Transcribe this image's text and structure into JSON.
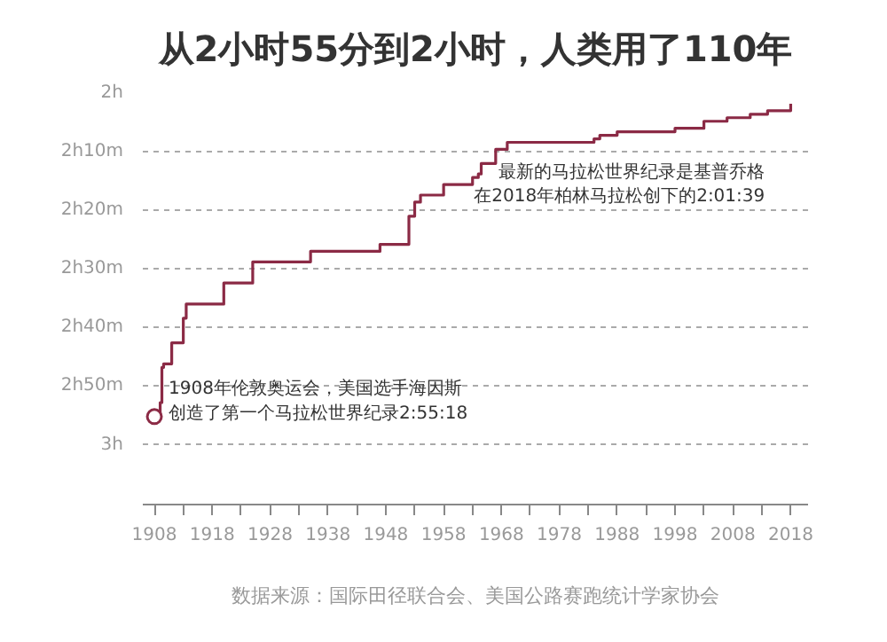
{
  "chart_data": {
    "type": "step",
    "title": "从2小时55分到2小时，人类用了110年",
    "x": [
      1908,
      1909,
      1909.3,
      1909.6,
      1911,
      1913,
      1913.5,
      1920,
      1925,
      1935,
      1947,
      1952,
      1953,
      1954,
      1958,
      1963,
      1964,
      1964.5,
      1965,
      1967,
      1969,
      1981,
      1984,
      1985,
      1988,
      1998,
      1999,
      2003,
      2007,
      2008,
      2011,
      2013,
      2014,
      2018
    ],
    "series": [
      {
        "color": "#8b2a45",
        "values": [
          2.92,
          2.88,
          2.78,
          2.77,
          2.71,
          2.64,
          2.6,
          2.54,
          2.48,
          2.45,
          2.43,
          2.35,
          2.31,
          2.29,
          2.26,
          2.24,
          2.23,
          2.2,
          2.2,
          2.16,
          2.14,
          2.14,
          2.13,
          2.12,
          2.11,
          2.1,
          2.1,
          2.08,
          2.07,
          2.07,
          2.06,
          2.06,
          2.05,
          2.03
        ]
      }
    ],
    "xlim": [
      1906,
      2021
    ],
    "xticks": [
      1908,
      {
        "value": 1913,
        "label": null
      },
      1918,
      {
        "value": 1923,
        "label": null
      },
      1928,
      {
        "value": 1933,
        "label": null
      },
      1938,
      {
        "value": 1943,
        "label": null
      },
      1948,
      {
        "value": 1953,
        "label": null
      },
      1958,
      {
        "value": 1963,
        "label": null
      },
      1968,
      {
        "value": 1973,
        "label": null
      },
      1978,
      {
        "value": 1983,
        "label": null
      },
      1988,
      {
        "value": 1993,
        "label": null
      },
      1998,
      {
        "value": 2003,
        "label": null
      },
      2008,
      {
        "value": 2013,
        "label": null
      },
      2018
    ],
    "ylim": [
      3.17,
      2
    ],
    "yticks": [
      {
        "value": 2,
        "label": "2h"
      },
      {
        "value": 2.1667,
        "label": "2h10m"
      },
      {
        "value": 2.3333,
        "label": "2h20m"
      },
      {
        "value": 2.5,
        "label": "2h30m"
      },
      {
        "value": 2.6667,
        "label": "2h40m"
      },
      {
        "value": 2.8333,
        "label": "2h50m"
      },
      {
        "value": 3,
        "label": "3h"
      }
    ],
    "grid": "y",
    "annotations": [
      {
        "text": "1908年伦敦奥运会，美国选手海因斯创造了第一个马拉松世界纪录2:55:18",
        "x": 1908,
        "y": 2.92
      },
      "最新的马拉松世界纪录是基普乔格在2018年柏林马拉松创下的2:01:39",
      "数据来源：国际田径联合会、美国公路赛跑统计学家协会"
    ]
  }
}
